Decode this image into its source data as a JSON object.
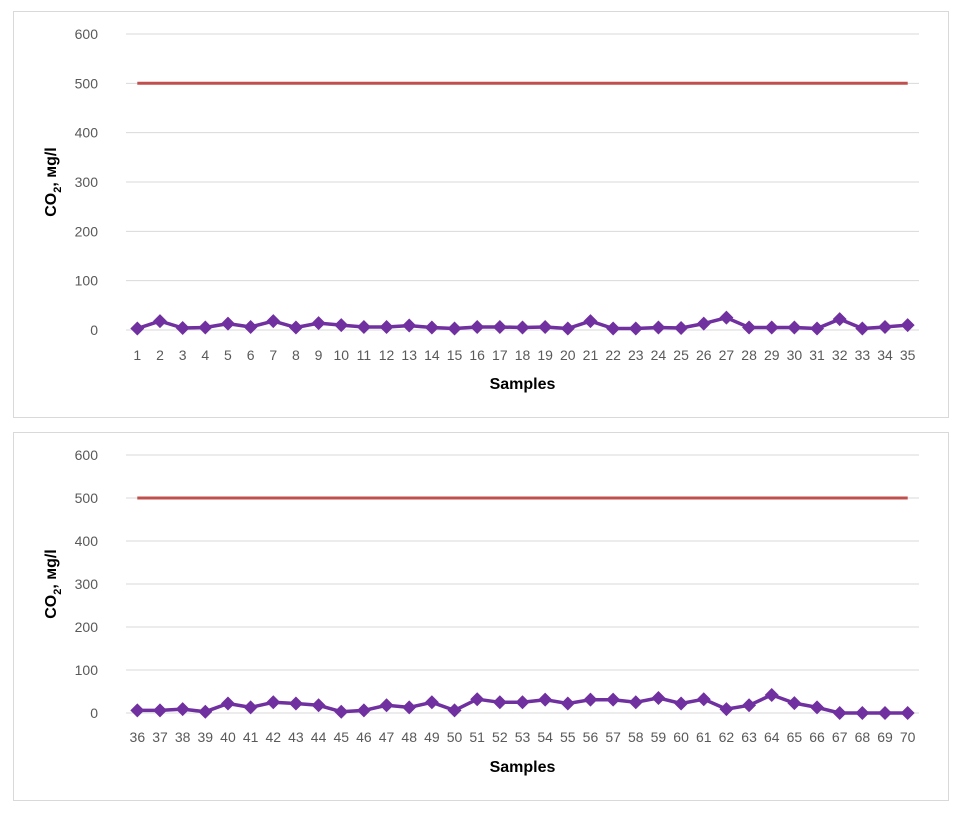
{
  "colors": {
    "series": "#7030a0",
    "limit": "#c0504d",
    "grid": "#d9d9d9",
    "tick": "#595959"
  },
  "chart_data": [
    {
      "type": "line",
      "xlabel": "Samples",
      "ylabel_main": "CO",
      "ylabel_sub": "2",
      "ylabel_rest": ", мg/l",
      "ylim": [
        0,
        600
      ],
      "yticks": [
        0,
        100,
        200,
        300,
        400,
        500,
        600
      ],
      "grid": true,
      "legend": "none",
      "categories": [
        "1",
        "2",
        "3",
        "4",
        "5",
        "6",
        "7",
        "8",
        "9",
        "10",
        "11",
        "12",
        "13",
        "14",
        "15",
        "16",
        "17",
        "18",
        "19",
        "20",
        "21",
        "22",
        "23",
        "24",
        "25",
        "26",
        "27",
        "28",
        "29",
        "30",
        "31",
        "32",
        "33",
        "34",
        "35"
      ],
      "series": [
        {
          "values": [
            3,
            18,
            4,
            5,
            13,
            6,
            18,
            5,
            14,
            10,
            6,
            6,
            9,
            5,
            3,
            6,
            6,
            5,
            6,
            3,
            18,
            3,
            3,
            5,
            4,
            13,
            25,
            5,
            5,
            5,
            3,
            22,
            3,
            6,
            10
          ],
          "marker": "diamond",
          "color": "#7030a0"
        },
        {
          "values": [
            500,
            500,
            500,
            500,
            500,
            500,
            500,
            500,
            500,
            500,
            500,
            500,
            500,
            500,
            500,
            500,
            500,
            500,
            500,
            500,
            500,
            500,
            500,
            500,
            500,
            500,
            500,
            500,
            500,
            500,
            500,
            500,
            500,
            500,
            500
          ],
          "marker": "none",
          "color": "#c0504d"
        }
      ]
    },
    {
      "type": "line",
      "xlabel": "Samples",
      "ylabel_main": "CO",
      "ylabel_sub": "2",
      "ylabel_rest": ", мg/l",
      "ylim": [
        0,
        600
      ],
      "yticks": [
        0,
        100,
        200,
        300,
        400,
        500,
        600
      ],
      "grid": true,
      "legend": "none",
      "categories": [
        "36",
        "37",
        "38",
        "39",
        "40",
        "41",
        "42",
        "43",
        "44",
        "45",
        "46",
        "47",
        "48",
        "49",
        "50",
        "51",
        "52",
        "53",
        "54",
        "55",
        "56",
        "57",
        "58",
        "59",
        "60",
        "61",
        "62",
        "63",
        "64",
        "65",
        "66",
        "67",
        "68",
        "69",
        "70"
      ],
      "series": [
        {
          "values": [
            6,
            6,
            9,
            3,
            22,
            13,
            25,
            22,
            18,
            3,
            6,
            18,
            13,
            25,
            6,
            32,
            25,
            25,
            31,
            22,
            31,
            31,
            25,
            35,
            22,
            32,
            9,
            18,
            42,
            23,
            13,
            0,
            0,
            0,
            0
          ],
          "marker": "diamond",
          "color": "#7030a0"
        },
        {
          "values": [
            500,
            500,
            500,
            500,
            500,
            500,
            500,
            500,
            500,
            500,
            500,
            500,
            500,
            500,
            500,
            500,
            500,
            500,
            500,
            500,
            500,
            500,
            500,
            500,
            500,
            500,
            500,
            500,
            500,
            500,
            500,
            500,
            500,
            500,
            500
          ],
          "marker": "none",
          "color": "#c0504d"
        }
      ]
    }
  ]
}
